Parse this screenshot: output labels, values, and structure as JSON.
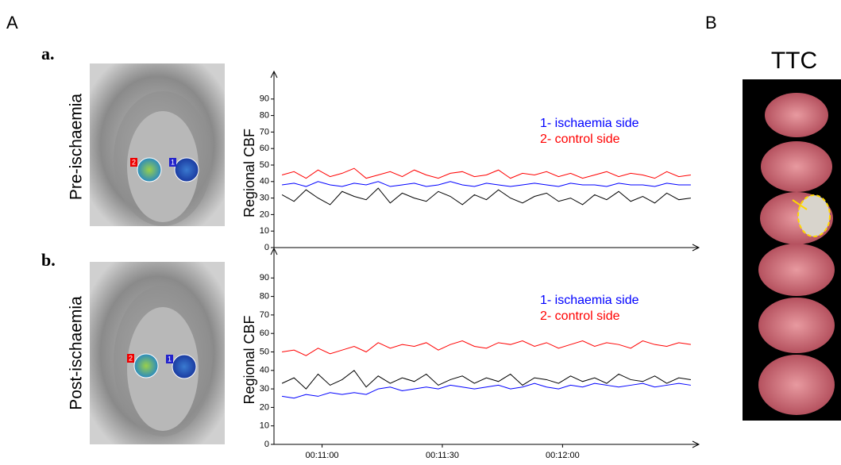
{
  "figure": {
    "panel_a": "A",
    "panel_b": "B",
    "sub_a": "a.",
    "sub_b": "b.",
    "image_a_label": "Pre-ischaemia",
    "image_b_label": "Post-ischaemia",
    "roi_1": "1",
    "roi_2": "2",
    "ttc_label": "TTC"
  },
  "chart_data": [
    {
      "type": "line",
      "ylabel": "Regional CBF",
      "legend": "upper right",
      "ylim": [
        0,
        100
      ],
      "yticks": [
        0,
        10,
        20,
        30,
        40,
        50,
        60,
        70,
        80,
        90
      ],
      "xlim": [
        648,
        754
      ],
      "x": [
        650,
        653,
        656,
        659,
        662,
        665,
        668,
        671,
        674,
        677,
        680,
        683,
        686,
        689,
        692,
        695,
        698,
        701,
        704,
        707,
        710,
        713,
        716,
        719,
        722,
        725,
        728,
        731,
        734,
        737,
        740,
        743,
        746,
        749,
        752
      ],
      "series": [
        {
          "color": "#000000",
          "values": [
            32,
            28,
            35,
            30,
            26,
            34,
            31,
            29,
            36,
            27,
            33,
            30,
            28,
            34,
            31,
            26,
            32,
            29,
            35,
            30,
            27,
            31,
            33,
            28,
            30,
            26,
            32,
            29,
            34,
            28,
            31,
            27,
            33,
            29,
            30
          ]
        },
        {
          "name": "2- control side",
          "color": "#ff0000",
          "values": [
            44,
            46,
            42,
            47,
            43,
            45,
            48,
            42,
            44,
            46,
            43,
            47,
            44,
            42,
            45,
            46,
            43,
            44,
            47,
            42,
            45,
            44,
            46,
            43,
            45,
            42,
            44,
            46,
            43,
            45,
            44,
            42,
            46,
            43,
            44
          ]
        },
        {
          "name": "1- ischaemia side",
          "color": "#0000ff",
          "values": [
            38,
            39,
            37,
            40,
            38,
            37,
            39,
            38,
            40,
            37,
            38,
            39,
            37,
            38,
            40,
            38,
            37,
            39,
            38,
            37,
            38,
            39,
            38,
            37,
            39,
            38,
            38,
            37,
            39,
            38,
            38,
            37,
            39,
            38,
            38
          ]
        }
      ]
    },
    {
      "type": "line",
      "ylabel": "Regional CBF",
      "legend": "upper right",
      "ylim": [
        0,
        100
      ],
      "yticks": [
        0,
        10,
        20,
        30,
        40,
        50,
        60,
        70,
        80,
        90
      ],
      "xlim": [
        648,
        754
      ],
      "xticks": [
        {
          "value": 660,
          "label": "00:11:00"
        },
        {
          "value": 690,
          "label": "00:11:30"
        },
        {
          "value": 720,
          "label": "00:12:00"
        }
      ],
      "x": [
        650,
        653,
        656,
        659,
        662,
        665,
        668,
        671,
        674,
        677,
        680,
        683,
        686,
        689,
        692,
        695,
        698,
        701,
        704,
        707,
        710,
        713,
        716,
        719,
        722,
        725,
        728,
        731,
        734,
        737,
        740,
        743,
        746,
        749,
        752
      ],
      "series": [
        {
          "name": "2- control side",
          "color": "#ff0000",
          "values": [
            50,
            51,
            48,
            52,
            49,
            51,
            53,
            50,
            55,
            52,
            54,
            53,
            55,
            51,
            54,
            56,
            53,
            52,
            55,
            54,
            56,
            53,
            55,
            52,
            54,
            56,
            53,
            55,
            54,
            52,
            56,
            54,
            53,
            55,
            54
          ]
        },
        {
          "color": "#000000",
          "values": [
            33,
            36,
            30,
            38,
            32,
            35,
            40,
            31,
            37,
            33,
            36,
            34,
            38,
            32,
            35,
            37,
            33,
            36,
            34,
            38,
            32,
            36,
            35,
            33,
            37,
            34,
            36,
            33,
            38,
            35,
            34,
            37,
            33,
            36,
            35
          ]
        },
        {
          "name": "1- ischaemia side",
          "color": "#0000ff",
          "values": [
            26,
            25,
            27,
            26,
            28,
            27,
            28,
            27,
            30,
            31,
            29,
            30,
            31,
            30,
            32,
            31,
            30,
            31,
            32,
            30,
            31,
            33,
            31,
            30,
            32,
            31,
            33,
            32,
            31,
            32,
            33,
            31,
            32,
            33,
            32
          ]
        }
      ]
    }
  ]
}
